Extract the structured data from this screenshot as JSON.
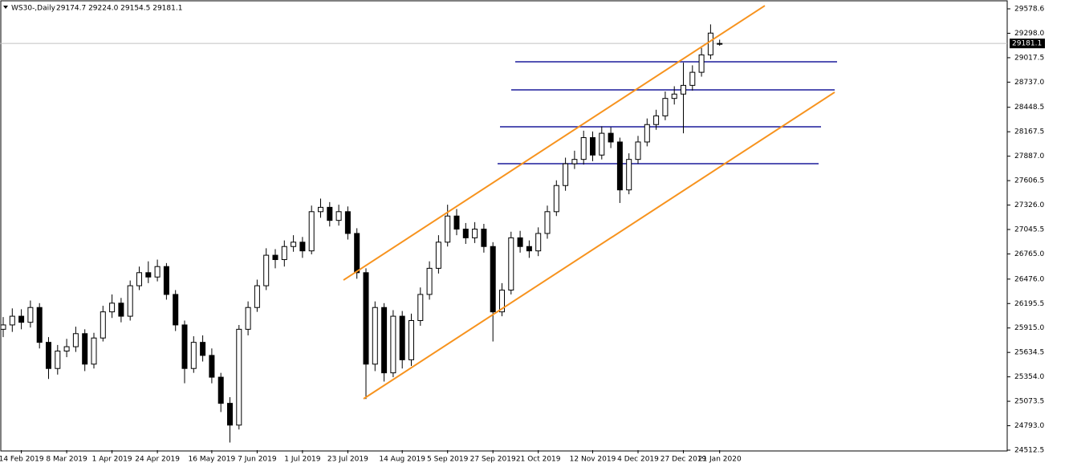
{
  "chart_data": {
    "type": "candlestick",
    "title": "WS30-,Daily",
    "info": "29174.7 29224.0 29154.5 29181.1",
    "categories": [
      null,
      null,
      "14 Feb 2019",
      null,
      null,
      null,
      null,
      "8 Mar 2019",
      null,
      null,
      null,
      null,
      "1 Apr 2019",
      null,
      null,
      null,
      null,
      "24 Apr 2019",
      null,
      null,
      null,
      null,
      null,
      "16 May 2019",
      null,
      null,
      null,
      null,
      "7 Jun 2019",
      null,
      null,
      null,
      null,
      "1 Jul 2019",
      null,
      null,
      null,
      null,
      "23 Jul 2019",
      null,
      null,
      null,
      null,
      null,
      "14 Aug 2019",
      null,
      null,
      null,
      null,
      "5 Sep 2019",
      null,
      null,
      null,
      null,
      "27 Sep 2019",
      null,
      null,
      null,
      null,
      "21 Oct 2019",
      null,
      null,
      null,
      null,
      null,
      "12 Nov 2019",
      null,
      null,
      null,
      null,
      "4 Dec 2019",
      null,
      null,
      null,
      null,
      "27 Dec 2019",
      null,
      null,
      null,
      "21 Jan 2020"
    ],
    "open": [
      25900,
      25950,
      26050,
      25980,
      26150,
      25750,
      25450,
      25650,
      25700,
      25850,
      25500,
      25800,
      26100,
      26200,
      26050,
      26400,
      26550,
      26500,
      26620,
      26300,
      25950,
      25450,
      25750,
      25600,
      25350,
      25050,
      24800,
      25900,
      26150,
      26400,
      26750,
      26700,
      26850,
      26900,
      26800,
      27250,
      27300,
      27150,
      27250,
      27000,
      26550,
      25500,
      26150,
      25400,
      26050,
      25550,
      26000,
      26300,
      26600,
      26900,
      27200,
      27050,
      26950,
      27050,
      26850,
      26100,
      26350,
      26950,
      26850,
      26800,
      27000,
      27250,
      27550,
      27800,
      27850,
      28100,
      27900,
      28150,
      28050,
      27500,
      27850,
      28050,
      28250,
      28350,
      28550,
      28600,
      28700,
      28850,
      29050,
      29174.7
    ],
    "high": [
      26040,
      26140,
      26130,
      26230,
      26200,
      25810,
      25720,
      25790,
      25930,
      25900,
      25860,
      26170,
      26300,
      26260,
      26460,
      26620,
      26680,
      26700,
      26660,
      26350,
      26000,
      25820,
      25830,
      25680,
      25400,
      25120,
      25950,
      26220,
      26470,
      26830,
      26820,
      26920,
      26980,
      26960,
      27320,
      27400,
      27360,
      27330,
      27310,
      27060,
      26600,
      26220,
      26200,
      26120,
      26110,
      26080,
      26380,
      26680,
      26980,
      27330,
      27280,
      27120,
      27130,
      27110,
      26900,
      26430,
      27020,
      27030,
      26920,
      27070,
      27320,
      27610,
      27870,
      27950,
      28180,
      28170,
      28230,
      28220,
      28100,
      27920,
      28120,
      28320,
      28420,
      28630,
      28690,
      28960,
      28930,
      29130,
      29400,
      29224.0
    ],
    "low": [
      25810,
      25870,
      25900,
      25920,
      25680,
      25330,
      25380,
      25580,
      25640,
      25420,
      25450,
      25760,
      26030,
      25980,
      26000,
      26350,
      26430,
      26450,
      26240,
      25880,
      25280,
      25400,
      25530,
      25280,
      24950,
      24600,
      24750,
      25830,
      26100,
      26350,
      26600,
      26620,
      26790,
      26720,
      26760,
      27180,
      27080,
      27090,
      26930,
      26480,
      25100,
      25420,
      25300,
      25350,
      25450,
      25480,
      25940,
      26240,
      26540,
      26850,
      26980,
      26880,
      26890,
      26780,
      25760,
      26050,
      26300,
      26780,
      26720,
      26740,
      26940,
      27200,
      27490,
      27740,
      27790,
      27830,
      27850,
      27980,
      27350,
      27450,
      27800,
      28000,
      28190,
      28300,
      28480,
      28150,
      28640,
      28800,
      29000,
      29154.5
    ],
    "close": [
      25950,
      26050,
      25980,
      26150,
      25750,
      25450,
      25650,
      25700,
      25850,
      25500,
      25800,
      26100,
      26200,
      26050,
      26400,
      26550,
      26500,
      26620,
      26300,
      25950,
      25450,
      25750,
      25600,
      25350,
      25050,
      24800,
      25900,
      26150,
      26400,
      26750,
      26700,
      26850,
      26900,
      26800,
      27250,
      27300,
      27150,
      27250,
      27000,
      26550,
      25500,
      26150,
      25400,
      26050,
      25550,
      26000,
      26300,
      26600,
      26900,
      27200,
      27050,
      26950,
      27050,
      26850,
      26100,
      26350,
      26950,
      26850,
      26800,
      27000,
      27250,
      27550,
      27800,
      27850,
      28100,
      27900,
      28150,
      28050,
      27500,
      27850,
      28050,
      28250,
      28350,
      28550,
      28600,
      28700,
      28850,
      29050,
      29300,
      29181.1
    ],
    "current_price": {
      "value": 29181.1,
      "label": "29181.1"
    },
    "hlines": [
      {
        "value": 28970.7,
        "color": "#1c1c9c"
      },
      {
        "value": 28648,
        "color": "#1c1c9c"
      },
      {
        "value": 28224.7,
        "color": "#1c1c9c"
      },
      {
        "value": 27801,
        "color": "#1c1c9c"
      }
    ],
    "trendlines": [
      {
        "color": "#f7931e",
        "y": [
          26465,
          29615
        ]
      },
      {
        "color": "#f7931e",
        "y": [
          25102,
          28621
        ]
      }
    ],
    "ylim": [
      24512.5,
      29578.6
    ],
    "yticks": [
      {
        "value": 29578.6,
        "label": "29578.6"
      },
      {
        "value": 29298,
        "label": "29298.0"
      },
      {
        "value": 29017.5,
        "label": "29017.5"
      },
      {
        "value": 28737,
        "label": "28737.0"
      },
      {
        "value": 28448.5,
        "label": "28448.5"
      },
      {
        "value": 28167.5,
        "label": "28167.5"
      },
      {
        "value": 27887,
        "label": "27887.0"
      },
      {
        "value": 27606.5,
        "label": "27606.5"
      },
      {
        "value": 27326,
        "label": "27326.0"
      },
      {
        "value": 27045.5,
        "label": "27045.5"
      },
      {
        "value": 26765,
        "label": "26765.0"
      },
      {
        "value": 26476,
        "label": "26476.0"
      },
      {
        "value": 26195.5,
        "label": "26195.5"
      },
      {
        "value": 25915,
        "label": "25915.0"
      },
      {
        "value": 25634.5,
        "label": "25634.5"
      },
      {
        "value": 25354,
        "label": "25354.0"
      },
      {
        "value": 25073.5,
        "label": "25073.5"
      },
      {
        "value": 24793,
        "label": "24793.0"
      },
      {
        "value": 24512.5,
        "label": "24512.5"
      }
    ]
  }
}
